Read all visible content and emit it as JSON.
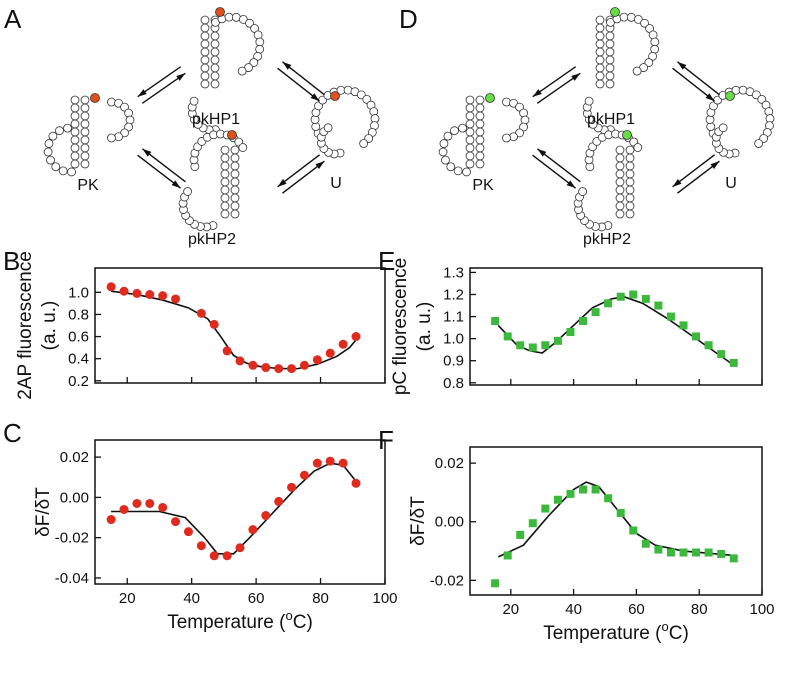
{
  "diagrams": [
    {
      "letter": "A",
      "top": "pkHP1",
      "left": "PK",
      "right": "U",
      "bottom": "pkHP2",
      "color": "#e0501b"
    },
    {
      "letter": "D",
      "top": "pkHP1",
      "left": "PK",
      "right": "U",
      "bottom": "pkHP2",
      "color": "#66dd44"
    }
  ],
  "chart_data": [
    {
      "type": "scatter",
      "panel": "B",
      "ylabel": [
        "2AP fluorescence",
        "(a. u.)"
      ],
      "color": "#e02a1e",
      "marker": "circle",
      "x": [
        15,
        19,
        23,
        27,
        31,
        35,
        43,
        47,
        51,
        55,
        59,
        63,
        67,
        71,
        75,
        79,
        83,
        87,
        91
      ],
      "values": [
        1.05,
        1.01,
        0.99,
        0.98,
        0.97,
        0.94,
        0.81,
        0.71,
        0.47,
        0.38,
        0.34,
        0.32,
        0.31,
        0.31,
        0.34,
        0.39,
        0.45,
        0.53,
        0.6
      ],
      "fit_x": [
        15,
        23,
        31,
        39,
        45,
        49,
        53,
        57,
        61,
        67,
        73,
        79,
        85,
        89,
        91
      ],
      "fit_values": [
        1.01,
        0.98,
        0.93,
        0.86,
        0.76,
        0.6,
        0.43,
        0.36,
        0.33,
        0.31,
        0.31,
        0.35,
        0.42,
        0.5,
        0.57
      ],
      "xlim": [
        10,
        100
      ],
      "xticks": [
        20,
        40,
        60,
        80,
        100
      ],
      "ylim": [
        0.18,
        1.22
      ],
      "yticks": [
        0.2,
        0.4,
        0.6,
        0.8,
        {
          "value": 1.0,
          "label": "1.0"
        }
      ]
    },
    {
      "type": "scatter",
      "panel": "C",
      "ylabel": [
        "δF/δT"
      ],
      "xlabel": [
        "Temperature (",
        "o",
        "C)"
      ],
      "color": "#e02a1e",
      "marker": "circle",
      "x": [
        15,
        19,
        23,
        27,
        31,
        35,
        39,
        43,
        47,
        51,
        55,
        59,
        63,
        67,
        71,
        75,
        79,
        83,
        87,
        91
      ],
      "values": [
        -0.011,
        -0.006,
        -0.003,
        -0.003,
        -0.005,
        -0.012,
        -0.017,
        -0.024,
        -0.029,
        -0.029,
        -0.025,
        -0.016,
        -0.009,
        -0.002,
        0.005,
        0.011,
        0.017,
        0.018,
        0.017,
        0.007
      ],
      "fit_x": [
        15,
        30,
        38,
        44,
        48,
        53,
        58,
        65,
        72,
        78,
        83,
        87,
        91
      ],
      "fit_values": [
        -0.007,
        -0.007,
        -0.01,
        -0.02,
        -0.028,
        -0.028,
        -0.02,
        -0.008,
        0.004,
        0.013,
        0.017,
        0.016,
        0.008
      ],
      "xlim": [
        10,
        100
      ],
      "xticks": [
        20,
        40,
        60,
        80,
        100
      ],
      "xtick_labels": true,
      "ylim": [
        -0.043,
        0.0285
      ],
      "yticks": [
        {
          "value": -0.04,
          "label": "-0.04"
        },
        -0.02,
        {
          "value": 0,
          "label": "0.00"
        },
        0.02
      ]
    },
    {
      "type": "scatter",
      "panel": "E",
      "ylabel": [
        "pC fluorescence",
        "(a. u.)"
      ],
      "color": "#3cb83c",
      "marker": "square",
      "x": [
        15,
        19,
        23,
        27,
        31,
        35,
        39,
        43,
        47,
        51,
        55,
        59,
        63,
        67,
        71,
        75,
        79,
        83,
        87,
        91
      ],
      "values": [
        1.08,
        1.01,
        0.97,
        0.96,
        0.97,
        0.99,
        1.03,
        1.08,
        1.12,
        1.16,
        1.19,
        1.2,
        1.18,
        1.15,
        1.1,
        1.06,
        1.01,
        0.97,
        0.93,
        0.89
      ],
      "fit_x": [
        16,
        22,
        26,
        30,
        34,
        40,
        46,
        52,
        56,
        62,
        70,
        80,
        91
      ],
      "fit_values": [
        1.06,
        0.97,
        0.945,
        0.935,
        0.98,
        1.06,
        1.14,
        1.18,
        1.19,
        1.16,
        1.09,
        0.99,
        0.88
      ],
      "xlim": [
        7,
        100
      ],
      "xticks": [
        20,
        40,
        60,
        80,
        100
      ],
      "ylim": [
        0.79,
        1.32
      ],
      "yticks": [
        0.8,
        0.9,
        {
          "value": 1.0,
          "label": "1.0"
        },
        1.1,
        1.2,
        1.3
      ]
    },
    {
      "type": "scatter",
      "panel": "F",
      "ylabel": [
        "δF/δT"
      ],
      "xlabel": [
        "Temperature (",
        "o",
        "C)"
      ],
      "color": "#3cb83c",
      "marker": "square",
      "x": [
        15,
        19,
        23,
        27,
        31,
        35,
        39,
        43,
        47,
        51,
        55,
        59,
        63,
        67,
        71,
        75,
        79,
        83,
        87,
        91
      ],
      "values": [
        -0.021,
        -0.0115,
        -0.0045,
        -0.0005,
        0.0045,
        0.0075,
        0.0095,
        0.011,
        0.011,
        0.008,
        0.003,
        -0.003,
        -0.0075,
        -0.0095,
        -0.0105,
        -0.0105,
        -0.0105,
        -0.0105,
        -0.011,
        -0.0125
      ],
      "fit_x": [
        16,
        24,
        32,
        40,
        44,
        48,
        54,
        60,
        66,
        75,
        91
      ],
      "fit_values": [
        -0.012,
        -0.008,
        0.002,
        0.011,
        0.0135,
        0.012,
        0.004,
        -0.004,
        -0.008,
        -0.01,
        -0.0115
      ],
      "xlim": [
        7,
        100
      ],
      "xticks": [
        20,
        40,
        60,
        80,
        100
      ],
      "xtick_labels": true,
      "ylim": [
        -0.025,
        0.0255
      ],
      "yticks": [
        -0.02,
        {
          "value": 0,
          "label": "0.00"
        },
        0.02
      ]
    }
  ]
}
